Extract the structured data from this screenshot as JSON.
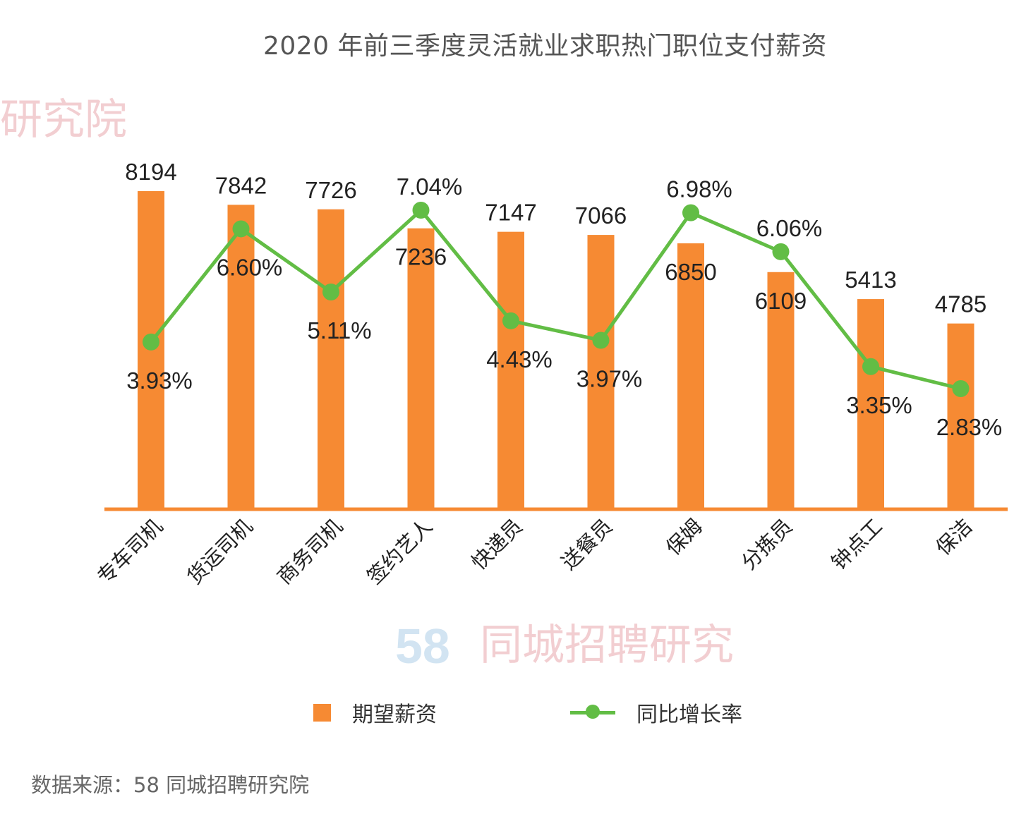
{
  "chart_data": {
    "type": "bar",
    "title": "2020 年前三季度灵活就业求职热门职位支付薪资",
    "xlabel": "",
    "ylabel": "",
    "categories": [
      "专车司机",
      "货运司机",
      "商务司机",
      "签约艺人",
      "快递员",
      "送餐员",
      "保姆",
      "分拣员",
      "钟点工",
      "保洁"
    ],
    "series": [
      {
        "name": "期望薪资",
        "type": "bar",
        "color": "#f68a33",
        "values": [
          8194,
          7842,
          7726,
          7236,
          7147,
          7066,
          6850,
          6109,
          5413,
          4785
        ],
        "labels": [
          "8194",
          "7842",
          "7726",
          "7236",
          "7147",
          "7066",
          "6850",
          "6109",
          "5413",
          "4785"
        ]
      },
      {
        "name": "同比增长率",
        "type": "line",
        "color": "#62bd45",
        "values": [
          3.93,
          6.6,
          5.11,
          7.04,
          4.43,
          3.97,
          6.98,
          6.06,
          3.35,
          2.83
        ],
        "labels": [
          "3.93%",
          "6.60%",
          "5.11%",
          "7.04%",
          "4.43%",
          "3.97%",
          "6.98%",
          "6.06%",
          "3.35%",
          "2.83%"
        ]
      }
    ],
    "ylim": [
      0,
      8194
    ],
    "y2lim": [
      0,
      7.04
    ],
    "grid": false,
    "legend": "bottom"
  },
  "legend": {
    "bar_label": "期望薪资",
    "line_label": "同比增长率"
  },
  "source": "数据来源：58 同城招聘研究院",
  "watermark": {
    "text_top": "研究院",
    "logo": "58",
    "text_bottom": "同城招聘研究"
  },
  "colors": {
    "bar": "#f68a33",
    "line": "#62bd45",
    "text": "#222222",
    "title": "#555555"
  }
}
